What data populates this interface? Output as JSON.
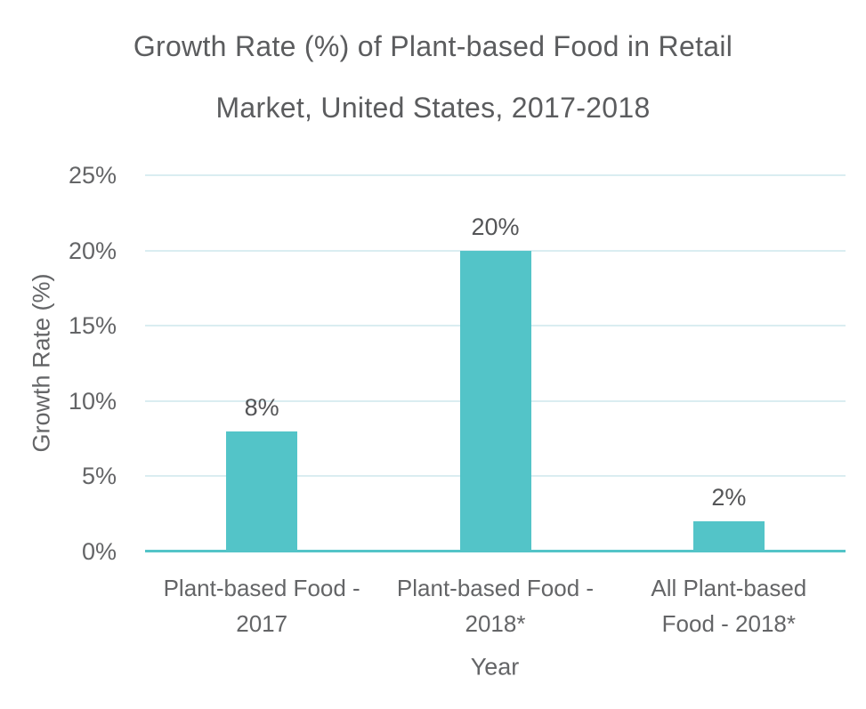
{
  "title": {
    "line1": "Growth Rate (%) of Plant-based Food in Retail",
    "line2": "Market, United States, 2017-2018"
  },
  "chart_data": {
    "type": "bar",
    "title": "Growth Rate (%) of Plant-based Food in Retail Market, United States, 2017-2018",
    "xlabel": "Year",
    "ylabel": "Growth Rate (%)",
    "categories": [
      "Plant-based Food - 2017",
      "Plant-based Food - 2018*",
      "All Plant-based Food - 2018*"
    ],
    "category_lines": [
      [
        "Plant-based Food -",
        "2017"
      ],
      [
        "Plant-based Food -",
        "2018*"
      ],
      [
        "All Plant-based",
        "Food - 2018*"
      ]
    ],
    "values": [
      8,
      20,
      2
    ],
    "value_labels": [
      "8%",
      "20%",
      "2%"
    ],
    "ylim": [
      0,
      25
    ],
    "ytick_values": [
      0,
      5,
      10,
      15,
      20,
      25
    ],
    "ytick_labels": [
      "0%",
      "5%",
      "10%",
      "15%",
      "20%",
      "25%"
    ],
    "grid": true,
    "legend": "none",
    "colors": {
      "bar": "#53C4C8",
      "baseline": "#53C4C8",
      "gridline": "#DAEDF1",
      "title_text": "#5B5C5E",
      "axis_text": "#646567",
      "value_label_text": "#545557"
    }
  }
}
